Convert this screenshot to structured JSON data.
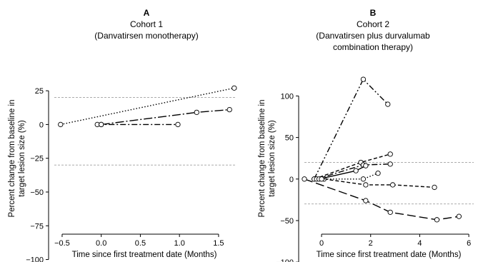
{
  "chart_data": [
    {
      "type": "line",
      "panel_letter": "A",
      "title_lines": [
        "Cohort 1",
        "(Danvatirsen monotherapy)"
      ],
      "xlabel": "Time since first treatment date (Months)",
      "ylabel_lines": [
        "Percent change from baseline in",
        "target lesion size (%)"
      ],
      "xlim": [
        -0.6,
        1.72
      ],
      "ylim": [
        -105,
        33
      ],
      "xticks": [
        -0.5,
        0.0,
        0.5,
        1.0,
        1.5
      ],
      "xtick_labels": [
        "−0.5",
        "0.0",
        "0.5",
        "1.0",
        "1.5"
      ],
      "yticks": [
        25,
        0,
        -25,
        -50,
        -75,
        -100
      ],
      "ytick_labels": [
        "25",
        "0",
        "−25",
        "−50",
        "−75",
        "−100"
      ],
      "reference_lines": [
        20,
        -30
      ],
      "series": [
        {
          "style": "dotted",
          "x": [
            -0.52,
            1.7
          ],
          "y": [
            0,
            27
          ]
        },
        {
          "style": "dashdot",
          "x": [
            -0.05,
            0.0,
            0.98
          ],
          "y": [
            0,
            0,
            0
          ]
        },
        {
          "style": "longdash-dot",
          "x": [
            0.0,
            1.22,
            1.64
          ],
          "y": [
            0,
            9,
            11
          ]
        }
      ]
    },
    {
      "type": "line",
      "panel_letter": "B",
      "title_lines": [
        "Cohort 2",
        "(Danvatirsen plus durvalumab",
        "combination therapy)"
      ],
      "xlabel": "Time since first treatment date (Months)",
      "ylabel_lines": [
        "Percent change from baseline in",
        "target lesion size (%)"
      ],
      "xlim": [
        -0.7,
        6.2
      ],
      "ylim": [
        -105,
        133
      ],
      "xticks": [
        0,
        2,
        4,
        6
      ],
      "xtick_labels": [
        "0",
        "2",
        "4",
        "6"
      ],
      "yticks": [
        100,
        50,
        0,
        -50,
        -100
      ],
      "ytick_labels": [
        "100",
        "50",
        "0",
        "−50",
        "−100"
      ],
      "reference_lines": [
        20,
        -30
      ],
      "series": [
        {
          "style": "dashdotdot",
          "x": [
            -0.3,
            1.7,
            2.7
          ],
          "y": [
            0,
            120,
            90
          ]
        },
        {
          "style": "longdash",
          "x": [
            -0.7,
            1.8,
            2.8,
            4.7,
            5.6
          ],
          "y": [
            0,
            -26,
            -40,
            -49,
            -45
          ]
        },
        {
          "style": "dashed",
          "x": [
            0.1,
            1.8,
            2.9,
            4.6
          ],
          "y": [
            0,
            -7,
            -7,
            -10
          ]
        },
        {
          "style": "dashed",
          "x": [
            -0.3,
            1.6,
            2.8
          ],
          "y": [
            0,
            20,
            30
          ]
        },
        {
          "style": "dashdot",
          "x": [
            -0.2,
            1.7,
            2.8
          ],
          "y": [
            0,
            17,
            18
          ]
        },
        {
          "style": "solid",
          "x": [
            -0.1,
            1.4,
            1.8
          ],
          "y": [
            0,
            10,
            16
          ]
        },
        {
          "style": "dotted",
          "x": [
            0.0,
            1.7,
            2.3
          ],
          "y": [
            0,
            0,
            7
          ]
        }
      ]
    }
  ]
}
